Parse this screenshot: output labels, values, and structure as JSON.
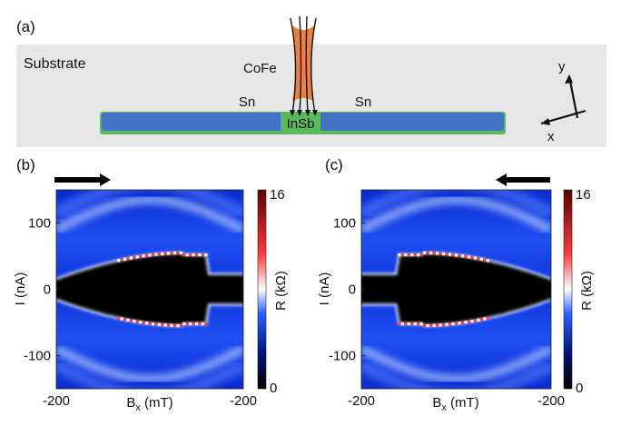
{
  "panel_a": {
    "label": "(a)",
    "substrate_label": "Substrate",
    "cofe_label": "CoFe",
    "sn_left_label": "Sn",
    "sn_right_label": "Sn",
    "insb_label": "InSb",
    "axis_y_label": "y",
    "axis_x_label": "x",
    "colors": {
      "substrate": "#e6e6e6",
      "wire": "#4472c4",
      "shell": "#5cb85c",
      "cofe": "#e8823c"
    }
  },
  "chart_data": [
    {
      "type": "heatmap",
      "panel_label": "(b)",
      "sweep_direction": "right",
      "xlabel": "B",
      "xlabel_sub": "x",
      "xlabel_unit": " (mT)",
      "ylabel": "I (nA)",
      "xlim": [
        -200,
        200
      ],
      "ylim": [
        -150,
        150
      ],
      "x_tick_labels": [
        "-200",
        "-200"
      ],
      "y_ticks": [
        100,
        0,
        -100
      ],
      "y_tick_labels": [
        "100",
        "0",
        "-100"
      ],
      "colorbar": {
        "label": "R (kΩ)",
        "min": 0,
        "max": 16,
        "tick_labels": [
          "16",
          "0"
        ]
      },
      "superconducting_region": {
        "switching_current_center_nA": 55,
        "switching_current_edge_nA": 15,
        "jump_field_mT": 120,
        "jump_side": "right"
      }
    },
    {
      "type": "heatmap",
      "panel_label": "(c)",
      "sweep_direction": "left",
      "xlabel": "B",
      "xlabel_sub": "x",
      "xlabel_unit": " (mT)",
      "ylabel": "I (nA)",
      "xlim": [
        -200,
        200
      ],
      "ylim": [
        -150,
        150
      ],
      "x_tick_labels": [
        "-200",
        "-200"
      ],
      "y_ticks": [
        100,
        0,
        -100
      ],
      "y_tick_labels": [
        "100",
        "0",
        "-100"
      ],
      "colorbar": {
        "label": "R (kΩ)",
        "min": 0,
        "max": 16,
        "tick_labels": [
          "16",
          "0"
        ]
      },
      "superconducting_region": {
        "switching_current_center_nA": 55,
        "switching_current_edge_nA": 15,
        "jump_field_mT": -120,
        "jump_side": "left"
      }
    }
  ]
}
